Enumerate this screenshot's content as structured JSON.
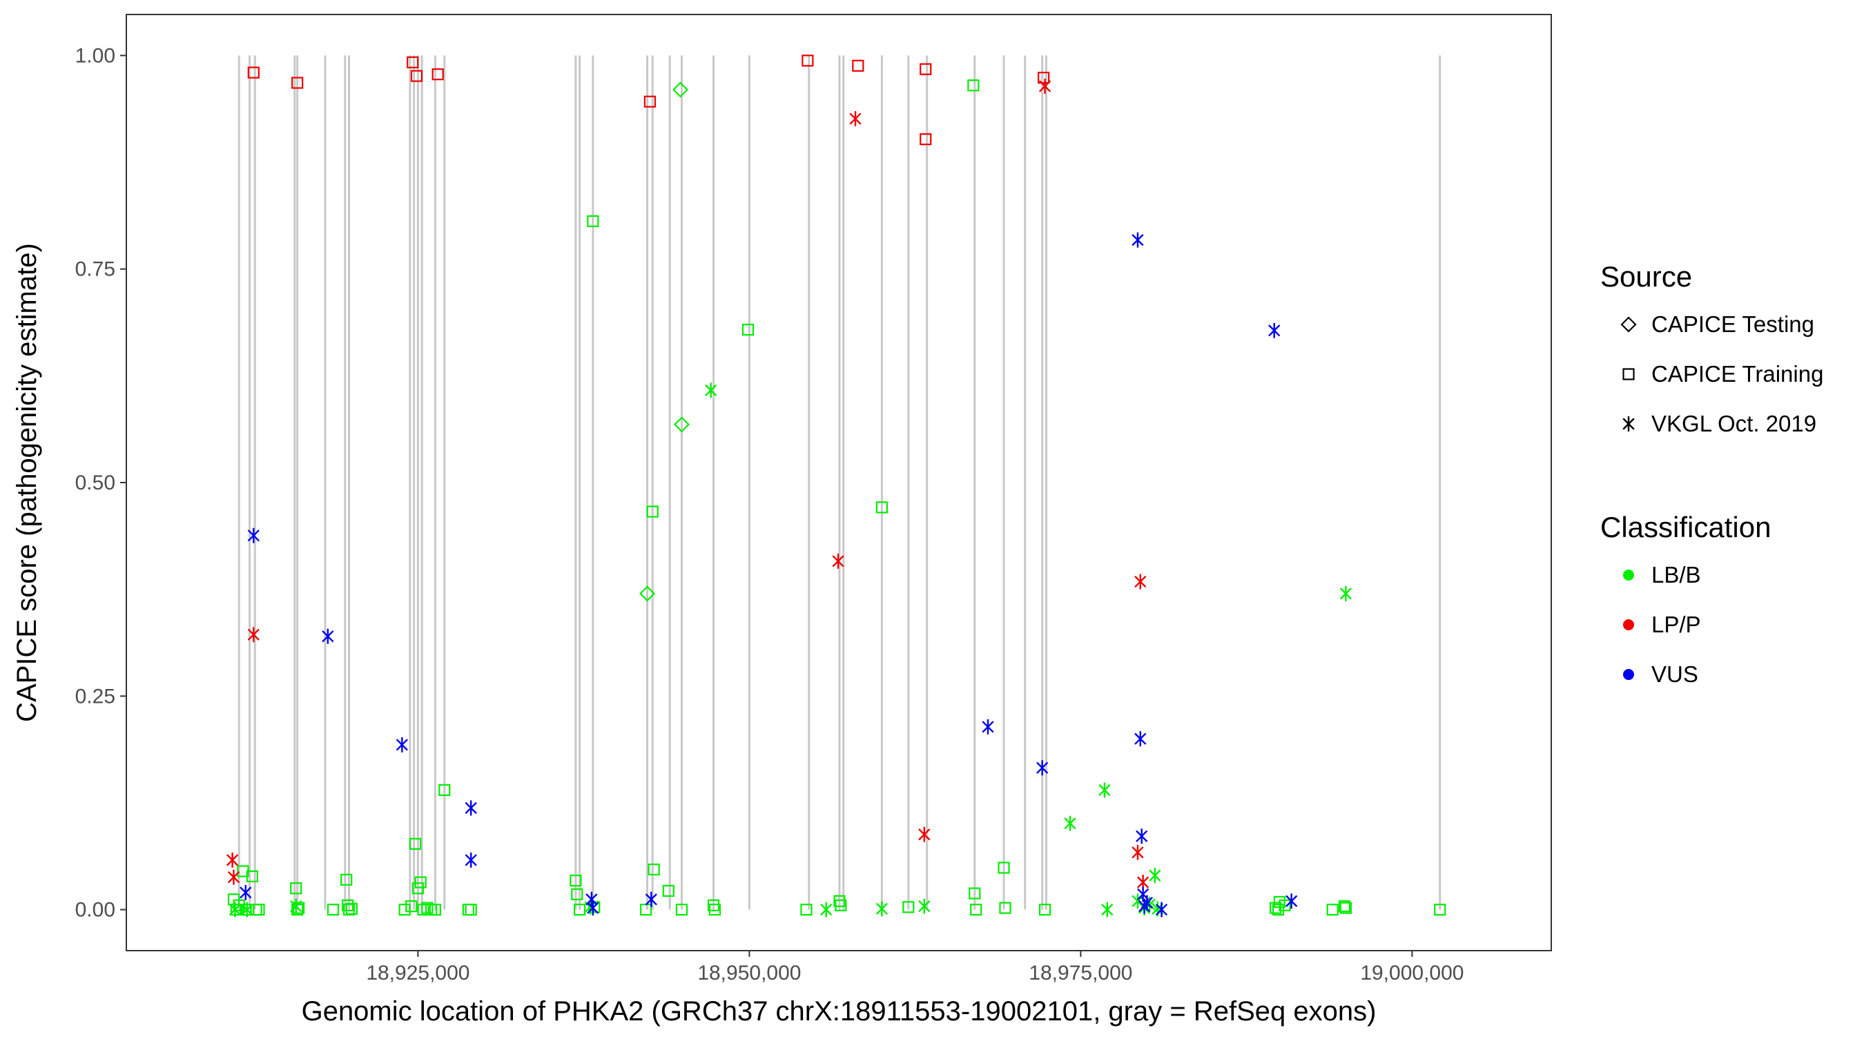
{
  "chart_data": {
    "type": "scatter",
    "title": "",
    "xlabel": "Genomic location of PHKA2 (GRCh37 chrX:18911553-19002101, gray = RefSeq exons)",
    "ylabel": "CAPICE score (pathogenicity estimate)",
    "xlim": [
      18903000,
      19010500
    ],
    "ylim": [
      -0.048,
      1.048
    ],
    "x_ticks": [
      18925000,
      18950000,
      18975000,
      19000000
    ],
    "x_tick_labels": [
      "18,925,000",
      "18,950,000",
      "18,975,000",
      "19,000,000"
    ],
    "y_ticks": [
      0,
      0.25,
      0.5,
      0.75,
      1
    ],
    "y_tick_labels": [
      "0.00",
      "0.25",
      "0.50",
      "0.75",
      "1.00"
    ],
    "grid": false,
    "legend_position": "right",
    "exons": [
      18911500,
      18912300,
      18912700,
      18915700,
      18915900,
      18918000,
      18919500,
      18919800,
      18924400,
      18924700,
      18925000,
      18925300,
      18926300,
      18927000,
      18936900,
      18937200,
      18938200,
      18942300,
      18942700,
      18944000,
      18944900,
      18947300,
      18950000,
      18954500,
      18956800,
      18957100,
      18960000,
      18962000,
      18963400,
      18967000,
      18969200,
      18970800,
      18972100,
      18972400,
      19002100
    ],
    "legend": {
      "source_title": "Source",
      "source_items": [
        {
          "shape": "diamond",
          "label": "CAPICE Testing"
        },
        {
          "shape": "square",
          "label": "CAPICE Training"
        },
        {
          "shape": "asterisk",
          "label": "VKGL Oct. 2019"
        }
      ],
      "class_title": "Classification",
      "class_items": [
        {
          "key": "LB/B",
          "label": "LB/B",
          "color": "#00ee00"
        },
        {
          "key": "LP/P",
          "label": "LP/P",
          "color": "#ee0000"
        },
        {
          "key": "VUS",
          "label": "VUS",
          "color": "#0000ee"
        }
      ]
    },
    "series": [
      {
        "source": "CAPICE Testing",
        "classification": "LB/B",
        "x": [
          18944800,
          18944900,
          18942300
        ],
        "y": [
          0.96,
          0.568,
          0.37
        ]
      },
      {
        "source": "CAPICE Training",
        "classification": "LP/P",
        "x": [
          18912600,
          18915900,
          18924600,
          18924900,
          18926500,
          18942500,
          18954400,
          18958200,
          18963300,
          18963300,
          18972200
        ],
        "y": [
          0.98,
          0.968,
          0.992,
          0.976,
          0.978,
          0.946,
          0.994,
          0.988,
          0.984,
          0.902,
          0.974
        ]
      },
      {
        "source": "CAPICE Training",
        "classification": "LB/B",
        "x": [
          18911100,
          18911300,
          18911500,
          18911800,
          18912000,
          18912200,
          18912500,
          18912800,
          18913000,
          18915800,
          18915900,
          18916000,
          18918600,
          18919600,
          18919700,
          18919800,
          18920000,
          18924000,
          18924500,
          18924800,
          18925000,
          18925200,
          18925400,
          18925700,
          18926000,
          18926300,
          18927000,
          18928800,
          18929000,
          18936900,
          18937000,
          18937200,
          18938200,
          18938300,
          18942200,
          18942700,
          18942800,
          18943900,
          18944900,
          18947300,
          18947400,
          18949900,
          18954300,
          18956800,
          18956900,
          18960000,
          18962000,
          18966900,
          18967000,
          18967100,
          18969200,
          18969300,
          18972300,
          18989700,
          18989900,
          18990000,
          18990400,
          18994000,
          18994900,
          18995000,
          19002100
        ],
        "y": [
          0.012,
          0,
          0.005,
          0.045,
          0,
          0,
          0.039,
          0,
          0,
          0.025,
          0,
          0.002,
          0,
          0.035,
          0.005,
          0,
          0.001,
          0,
          0.004,
          0.077,
          0.025,
          0.032,
          0,
          0.002,
          0,
          0,
          0.14,
          0,
          0,
          0.034,
          0.018,
          0,
          0.806,
          0.003,
          0,
          0.466,
          0.047,
          0.022,
          0,
          0.005,
          0,
          0.679,
          0,
          0.01,
          0.005,
          0.471,
          0.003,
          0.965,
          0.019,
          0,
          0.049,
          0.002,
          0,
          0.002,
          0,
          0.009,
          0.005,
          0,
          0.004,
          0.002,
          0
        ],
        "size": 0.7
      },
      {
        "source": "VKGL Oct. 2019",
        "classification": "LP/P",
        "x": [
          18911000,
          18911100,
          18912600,
          18956700,
          18958000,
          18963200,
          18972300,
          18979300,
          18979500,
          18979700
        ],
        "y": [
          0.058,
          0.038,
          0.322,
          0.408,
          0.926,
          0.088,
          0.964,
          0.067,
          0.384,
          0.032
        ]
      },
      {
        "source": "VKGL Oct. 2019",
        "classification": "LB/B",
        "x": [
          18911200,
          18912100,
          18915800,
          18938000,
          18947100,
          18955800,
          18960000,
          18963200,
          18974200,
          18976800,
          18977000,
          18979300,
          18979800,
          18980200,
          18980600,
          18980800,
          18995000
        ],
        "y": [
          0,
          0,
          0.004,
          0.003,
          0.608,
          0,
          0.001,
          0.004,
          0.101,
          0.14,
          0,
          0.01,
          0.002,
          0.006,
          0.04,
          0.001,
          0.37
        ]
      },
      {
        "source": "VKGL Oct. 2019",
        "classification": "VUS",
        "x": [
          18912000,
          18912600,
          18918200,
          18923800,
          18929000,
          18929000,
          18938100,
          18938200,
          18942600,
          18968000,
          18972100,
          18979300,
          18979500,
          18979600,
          18979700,
          18979800,
          18980000,
          18981100,
          18989600,
          18990900
        ],
        "y": [
          0.02,
          0.438,
          0.32,
          0.193,
          0.119,
          0.058,
          0.012,
          0.002,
          0.012,
          0.214,
          0.166,
          0.784,
          0.2,
          0.086,
          0.018,
          0.004,
          0.008,
          0,
          0.678,
          0.01
        ]
      }
    ]
  }
}
